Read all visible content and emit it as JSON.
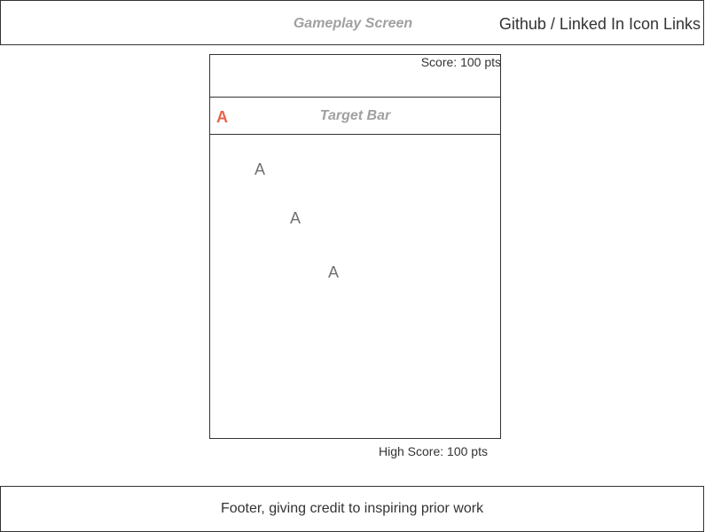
{
  "header": {
    "title": "Gameplay Screen",
    "links_label": "Github / Linked In Icon Links"
  },
  "game": {
    "score_text": "Score: 100 pts",
    "target_bar": {
      "label": "Target Bar",
      "target_letter": "A",
      "target_letter_color": "#e8634a"
    },
    "falling_letters": [
      "A",
      "A",
      "A"
    ]
  },
  "high_score_text": "High Score: 100 pts",
  "footer": {
    "text": "Footer, giving credit to inspiring prior work"
  }
}
